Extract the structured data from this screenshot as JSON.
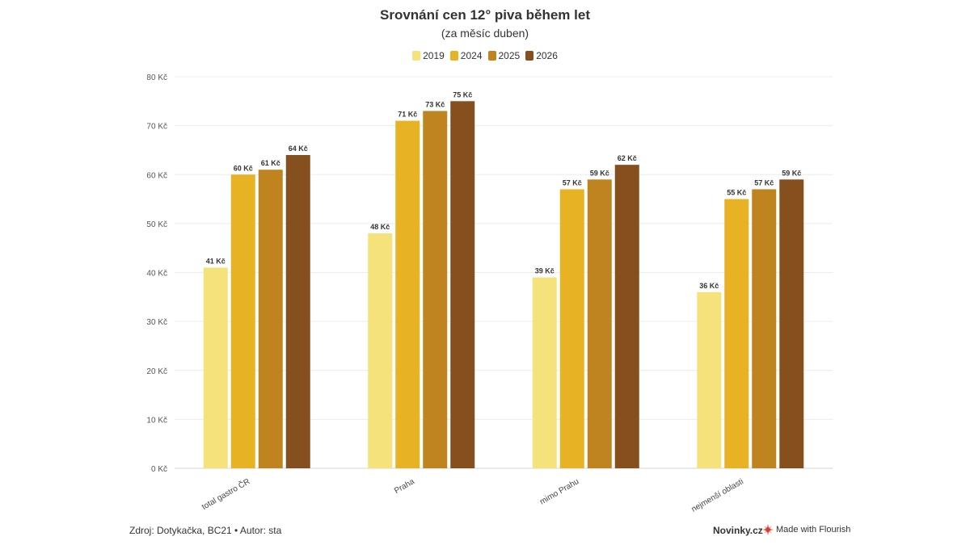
{
  "chart_data": {
    "type": "bar",
    "title": "Srovnání cen 12° piva během let",
    "subtitle": "(za měsíc duben)",
    "categories": [
      "total gastro ČR",
      "Praha",
      "mimo Prahu",
      "nejmenší oblasti"
    ],
    "series": [
      {
        "name": "2019",
        "color": "#f5e27a",
        "values": [
          41,
          48,
          39,
          36
        ]
      },
      {
        "name": "2024",
        "color": "#e8b225",
        "values": [
          60,
          71,
          57,
          55
        ]
      },
      {
        "name": "2025",
        "color": "#bf841f",
        "values": [
          61,
          73,
          59,
          57
        ]
      },
      {
        "name": "2026",
        "color": "#86501e",
        "values": [
          64,
          75,
          62,
          59
        ]
      }
    ],
    "value_suffix": " Kč",
    "ylim": [
      0,
      80
    ],
    "yticks": [
      0,
      10,
      20,
      30,
      40,
      50,
      60,
      70,
      80
    ],
    "grid": true,
    "legend_position": "top-center"
  },
  "footer": {
    "source": "Zdroj: Dotykačka, BC21 • Autor: sta",
    "brand": "Novinky.cz",
    "flourish": "Made with Flourish",
    "flourish_icon": "flourish-logo-icon"
  }
}
